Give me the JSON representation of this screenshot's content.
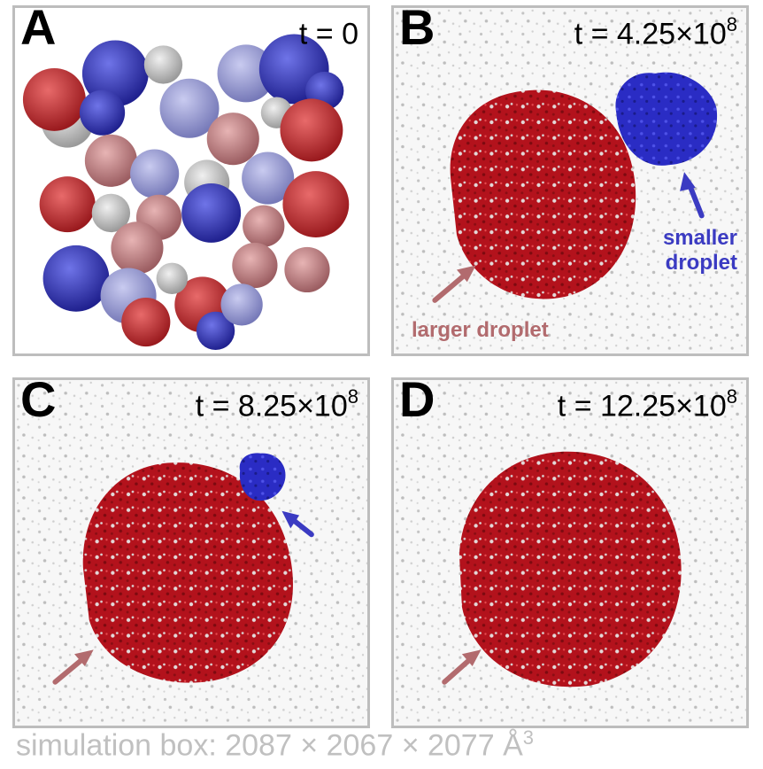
{
  "panels": [
    {
      "letter": "A",
      "time_label": "t = 0",
      "time_exp": ""
    },
    {
      "letter": "B",
      "time_label": "t = 4.25×10",
      "time_exp": "8"
    },
    {
      "letter": "C",
      "time_label": "t = 8.25×10",
      "time_exp": "8"
    },
    {
      "letter": "D",
      "time_label": "t = 12.25×10",
      "time_exp": "8"
    }
  ],
  "annotations": {
    "larger_droplet": "larger droplet",
    "smaller_droplet_line1": "smaller",
    "smaller_droplet_line2": "droplet"
  },
  "caption": {
    "text": "simulation box: 2087 × 2067 × 2077 Å",
    "exp": "3"
  },
  "colors": {
    "red_droplet": "#b3121c",
    "blue_droplet": "#2a2cc4",
    "larger_label": "#b26b6e",
    "smaller_label": "#3b3bc2",
    "frame": "#bdbdbd"
  }
}
